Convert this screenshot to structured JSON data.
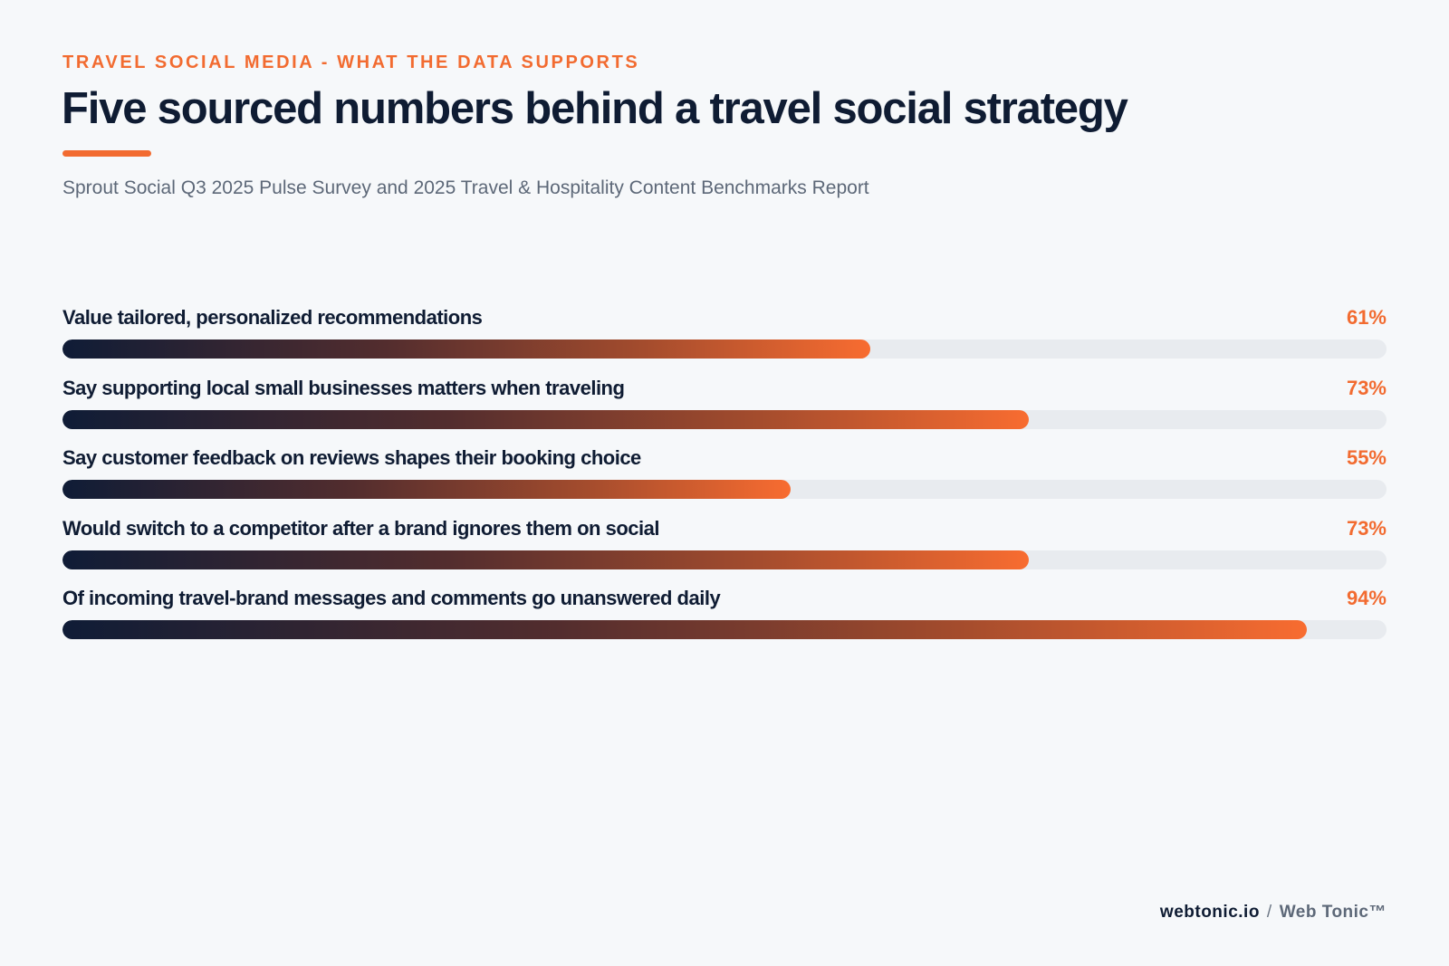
{
  "header": {
    "eyebrow": "TRAVEL SOCIAL MEDIA - WHAT THE DATA SUPPORTS",
    "title": "Five sourced numbers behind a travel social strategy",
    "subtitle": "Sprout Social Q3 2025 Pulse Survey and 2025 Travel & Hospitality Content Benchmarks Report"
  },
  "chart_data": {
    "type": "bar",
    "orientation": "horizontal",
    "xlim": [
      0,
      100
    ],
    "unit": "%",
    "categories": [
      "Value tailored, personalized recommendations",
      "Say supporting local small businesses matters when traveling",
      "Say customer feedback on reviews shapes their booking choice",
      "Would switch to a competitor after a brand ignores them on social",
      "Of incoming travel-brand messages and comments go unanswered daily"
    ],
    "values": [
      61,
      73,
      55,
      73,
      94
    ],
    "value_labels": [
      "61%",
      "73%",
      "55%",
      "73%",
      "94%"
    ],
    "colors": {
      "gradient_start": "#0f1c36",
      "gradient_end": "#f86c30",
      "track": "#e8ebef",
      "accent": "#f26b30"
    }
  },
  "footer": {
    "site": "webtonic.io",
    "separator": "/",
    "brand": "Web Tonic™"
  }
}
